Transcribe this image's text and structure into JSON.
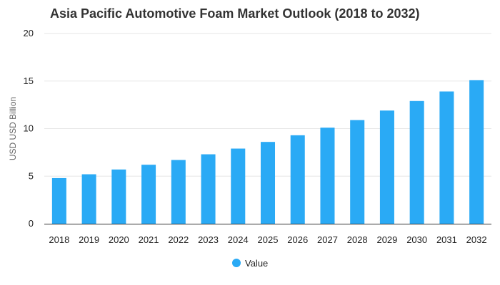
{
  "chart_data": {
    "type": "bar",
    "title": "Asia Pacific Automotive Foam Market Outlook (2018 to 2032)",
    "xlabel": "",
    "ylabel": "USD USD Billion",
    "categories": [
      "2018",
      "2019",
      "2020",
      "2021",
      "2022",
      "2023",
      "2024",
      "2025",
      "2026",
      "2027",
      "2028",
      "2029",
      "2030",
      "2031",
      "2032"
    ],
    "series": [
      {
        "name": "Value",
        "color": "#2aaaf5",
        "values": [
          4.8,
          5.2,
          5.7,
          6.2,
          6.7,
          7.3,
          7.9,
          8.6,
          9.3,
          10.1,
          10.9,
          11.9,
          12.9,
          13.9,
          15.1
        ]
      }
    ],
    "ylim": [
      0,
      20
    ],
    "yticks": [
      0,
      5,
      10,
      15,
      20
    ],
    "grid": true,
    "legend_position": "bottom-center"
  }
}
